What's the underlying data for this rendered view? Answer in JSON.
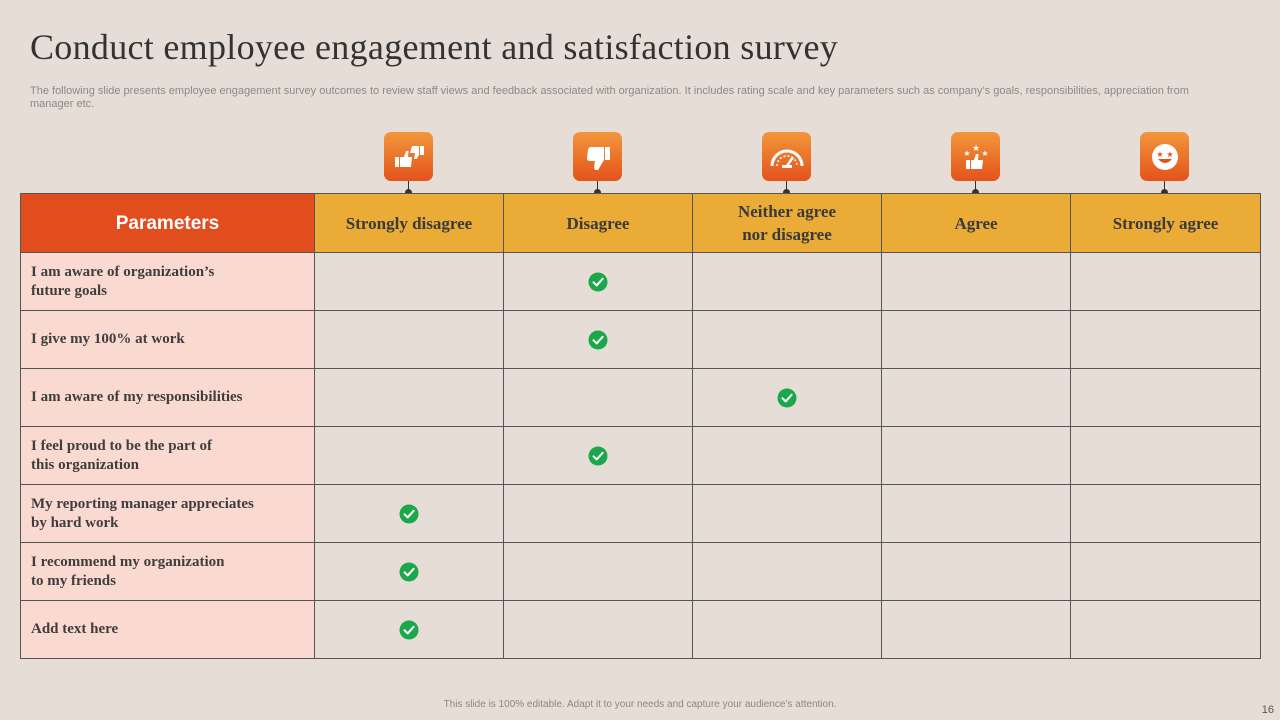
{
  "slide": {
    "title": "Conduct employee engagement and satisfaction survey",
    "subtitle": "The following slide presents employee engagement survey outcomes to review staff views and feedback associated with organization. It includes rating scale and key parameters such as company’s goals, responsibilities, appreciation from manager etc.",
    "footer": "This slide is 100% editable.  Adapt it to your needs and capture your audience’s attention.",
    "page_number": "16"
  },
  "colors": {
    "background": "#e5ddd6",
    "header_orange": "#e24d1e",
    "header_yellow": "#eaab37",
    "param_bg": "#fadad0",
    "check_green": "#1aa84b"
  },
  "table": {
    "param_header": "Parameters",
    "columns": [
      {
        "label": "Strongly disagree",
        "icon": "thumbs-up-down-icon"
      },
      {
        "label": "Disagree",
        "icon": "thumbs-down-icon"
      },
      {
        "label": "Neither agree\nnor disagree",
        "icon": "gauge-icon"
      },
      {
        "label": "Agree",
        "icon": "thumbs-up-stars-icon"
      },
      {
        "label": "Strongly agree",
        "icon": "star-eyes-face-icon"
      }
    ],
    "rows": [
      {
        "label": "I am aware of organization’s\nfuture goals",
        "checked_column": 1
      },
      {
        "label": "I give my 100% at work",
        "checked_column": 1
      },
      {
        "label": "I am aware of my responsibilities",
        "checked_column": 2
      },
      {
        "label": "I feel proud to be the part of\nthis organization",
        "checked_column": 1
      },
      {
        "label": "My reporting manager appreciates\nby hard work",
        "checked_column": 0
      },
      {
        "label": "I recommend my organization\nto my friends",
        "checked_column": 0
      },
      {
        "label": "Add text here",
        "checked_column": 0
      }
    ]
  }
}
